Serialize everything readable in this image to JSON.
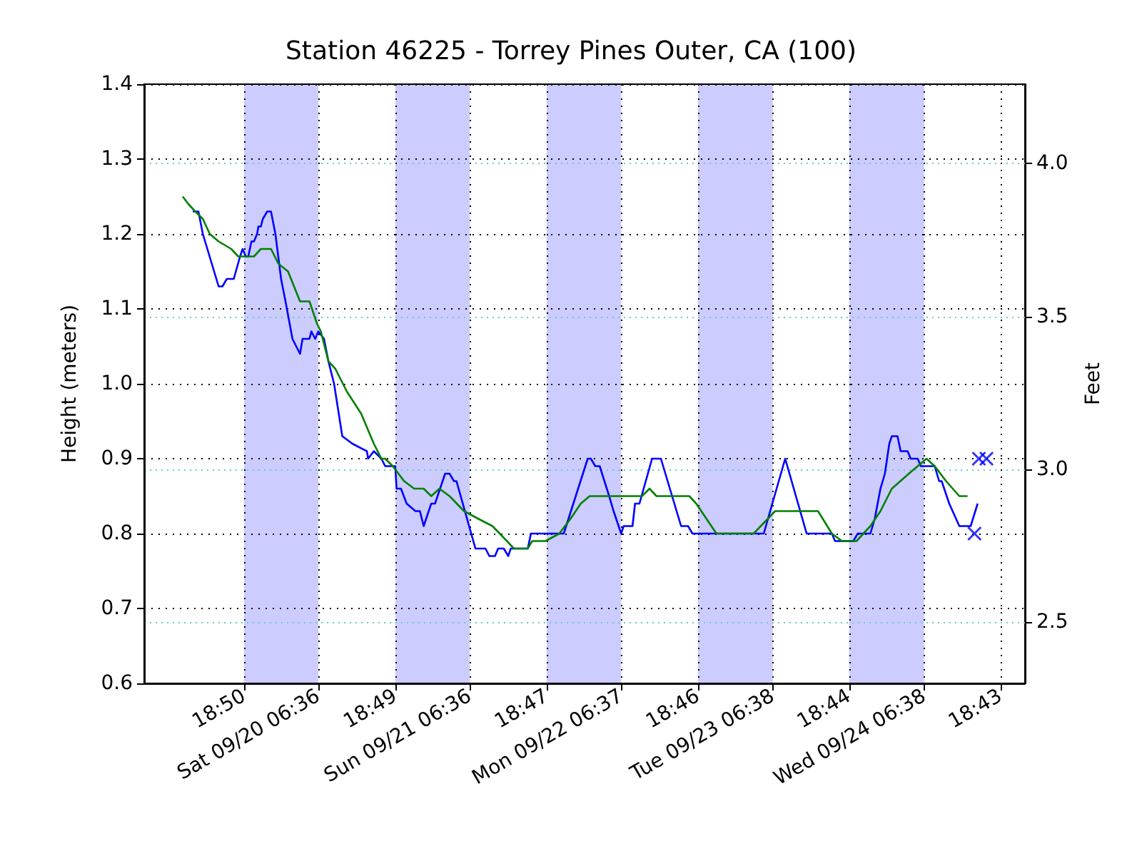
{
  "chart_data": {
    "type": "line",
    "title": "Station 46225 - Torrey Pines Outer, CA (100)",
    "ylabel": "Height (meters)",
    "y2label": "Feet",
    "xlim": [
      "--09-19T03:00",
      "--09-24T22:36"
    ],
    "xticks": [
      {
        "value": "--09-19T18:50",
        "label": "18:50"
      },
      {
        "value": "--09-20T06:36",
        "label": "Sat 09/20 06:36"
      },
      {
        "value": "--09-20T18:49",
        "label": "18:49"
      },
      {
        "value": "--09-21T06:36",
        "label": "Sun 09/21 06:36"
      },
      {
        "value": "--09-21T18:47",
        "label": "18:47"
      },
      {
        "value": "--09-22T06:37",
        "label": "Mon 09/22 06:37"
      },
      {
        "value": "--09-22T18:46",
        "label": "18:46"
      },
      {
        "value": "--09-23T06:38",
        "label": "Tue 09/23 06:38"
      },
      {
        "value": "--09-23T18:44",
        "label": "18:44"
      },
      {
        "value": "--09-24T06:38",
        "label": "Wed 09/24 06:38"
      },
      {
        "value": "--09-24T18:43",
        "label": "18:43"
      }
    ],
    "ylim": [
      0.6,
      1.4
    ],
    "yticks": [
      0.6,
      0.7,
      0.8,
      0.9,
      {
        "value": 1,
        "label": "1.0"
      },
      1.1,
      1.2,
      1.3,
      1.4
    ],
    "y2lim": [
      2.3,
      4.26
    ],
    "y2ticks": [
      2.5,
      {
        "value": 3,
        "label": "3.0"
      },
      3.5,
      {
        "value": 4,
        "label": "4.0"
      }
    ],
    "grid": true,
    "bands": [
      {
        "axis": "x",
        "from": "--09-19T18:50",
        "to": "--09-20T06:36",
        "color": "#ccccff"
      },
      {
        "axis": "x",
        "from": "--09-20T18:49",
        "to": "--09-21T06:36",
        "color": "#ccccff"
      },
      {
        "axis": "x",
        "from": "--09-21T18:47",
        "to": "--09-22T06:37",
        "color": "#ccccff"
      },
      {
        "axis": "x",
        "from": "--09-22T18:46",
        "to": "--09-23T06:38",
        "color": "#ccccff"
      },
      {
        "axis": "x",
        "from": "--09-23T18:44",
        "to": "--09-24T06:38",
        "color": "#ccccff"
      }
    ],
    "series": [
      {
        "color": "#0000ff",
        "x": [
          "--09-19T10:42",
          "--09-19T11:36",
          "--09-19T12:18",
          "--09-19T14:48",
          "--09-19T15:24",
          "--09-19T16:06",
          "--09-19T17:12",
          "--09-19T18:12",
          "--09-19T18:36",
          "--09-19T19:06",
          "--09-19T19:30",
          "--09-19T20:00",
          "--09-19T20:24",
          "--09-19T20:54",
          "--09-19T21:06",
          "--09-19T21:30",
          "--09-19T21:48",
          "--09-19T22:30",
          "--09-19T23:06",
          "--09-19T23:48",
          "--09-20T00:42",
          "--09-20T01:24",
          "--09-20T02:30",
          "--09-20T03:42",
          "--09-20T04:06",
          "--09-20T05:12",
          "--09-20T05:30",
          "--09-20T06:06",
          "--09-20T06:36",
          "--09-20T07:30",
          "--09-20T08:12",
          "--09-20T09:06",
          "--09-20T10:24",
          "--09-20T12:00",
          "--09-20T14:18",
          "--09-20T14:30",
          "--09-20T15:24",
          "--09-20T16:36",
          "--09-20T17:12",
          "--09-20T18:24",
          "--09-20T18:48",
          "--09-20T19:00",
          "--09-20T19:42",
          "--09-20T20:36",
          "--09-20T22:00",
          "--09-20T22:42",
          "--09-20T23:18",
          "--09-21T00:30",
          "--09-21T01:06",
          "--09-21T02:42",
          "--09-21T03:24",
          "--09-21T04:06",
          "--09-21T04:30",
          "--09-21T07:30",
          "--09-21T09:06",
          "--09-21T09:42",
          "--09-21T10:36",
          "--09-21T11:06",
          "--09-21T12:00",
          "--09-21T12:42",
          "--09-21T13:06",
          "--09-21T15:48",
          "--09-21T16:18",
          "--09-21T20:48",
          "--09-21T21:30",
          "--09-22T01:18",
          "--09-22T01:48",
          "--09-22T02:30",
          "--09-22T03:12",
          "--09-22T04:42",
          "--09-22T05:24",
          "--09-22T06:36",
          "--09-22T07:00",
          "--09-22T07:42",
          "--09-22T08:24",
          "--09-22T08:48",
          "--09-22T09:30",
          "--09-22T11:30",
          "--09-22T12:54",
          "--09-22T16:06",
          "--09-22T17:12",
          "--09-22T17:54",
          "--09-23T05:12",
          "--09-23T08:36",
          "--09-23T12:00",
          "--09-23T16:00",
          "--09-23T16:30",
          "--09-23T19:24",
          "--09-23T20:06",
          "--09-23T22:06",
          "--09-23T22:48",
          "--09-23T23:42",
          "--09-24T00:24",
          "--09-24T01:06",
          "--09-24T01:30",
          "--09-24T02:24",
          "--09-24T02:54",
          "--09-24T04:00",
          "--09-24T04:30",
          "--09-24T05:36",
          "--09-24T06:06",
          "--09-24T08:18",
          "--09-24T09:00",
          "--09-24T09:24",
          "--09-24T10:36",
          "--09-24T12:12",
          "--09-24T14:00",
          "--09-24T15:06"
        ],
        "values": [
          1.23,
          1.23,
          1.2,
          1.13,
          1.13,
          1.14,
          1.14,
          1.17,
          1.18,
          1.17,
          1.17,
          1.19,
          1.19,
          1.2,
          1.21,
          1.21,
          1.22,
          1.23,
          1.23,
          1.2,
          1.14,
          1.11,
          1.06,
          1.04,
          1.06,
          1.06,
          1.07,
          1.06,
          1.07,
          1.06,
          1.03,
          1.0,
          0.93,
          0.92,
          0.91,
          0.9,
          0.91,
          0.9,
          0.89,
          0.89,
          0.89,
          0.86,
          0.86,
          0.84,
          0.83,
          0.83,
          0.81,
          0.84,
          0.84,
          0.88,
          0.88,
          0.87,
          0.87,
          0.78,
          0.78,
          0.77,
          0.77,
          0.78,
          0.78,
          0.77,
          0.78,
          0.78,
          0.8,
          0.8,
          0.8,
          0.9,
          0.9,
          0.89,
          0.89,
          0.85,
          0.83,
          0.8,
          0.81,
          0.81,
          0.81,
          0.84,
          0.84,
          0.9,
          0.9,
          0.81,
          0.81,
          0.8,
          0.8,
          0.9,
          0.8,
          0.8,
          0.79,
          0.79,
          0.8,
          0.8,
          0.82,
          0.86,
          0.88,
          0.92,
          0.93,
          0.93,
          0.91,
          0.91,
          0.9,
          0.9,
          0.89,
          0.89,
          0.87,
          0.87,
          0.84,
          0.81,
          0.81,
          0.84
        ]
      },
      {
        "color": "#008000",
        "x": [
          "--09-19T09:06",
          "--09-19T10:00",
          "--09-19T11:06",
          "--09-19T12:18",
          "--09-19T13:24",
          "--09-19T14:48",
          "--09-19T16:48",
          "--09-19T17:54",
          "--09-19T19:06",
          "--09-19T20:24",
          "--09-19T21:30",
          "--09-19T23:06",
          "--09-20T00:18",
          "--09-20T01:48",
          "--09-20T03:42",
          "--09-20T05:12",
          "--09-20T06:24",
          "--09-20T07:00",
          "--09-20T08:12",
          "--09-20T09:18",
          "--09-20T11:06",
          "--09-20T13:24",
          "--09-20T15:24",
          "--09-20T16:36",
          "--09-20T17:12",
          "--09-20T18:24",
          "--09-20T20:12",
          "--09-20T21:48",
          "--09-20T23:18",
          "--09-21T00:30",
          "--09-21T01:48",
          "--09-21T03:24",
          "--09-21T05:42",
          "--09-21T07:54",
          "--09-21T10:12",
          "--09-21T12:30",
          "--09-21T13:36",
          "--09-21T15:48",
          "--09-21T16:30",
          "--09-21T18:36",
          "--09-21T20:48",
          "--09-21T22:36",
          "--09-22T00:12",
          "--09-22T01:36",
          "--09-22T03:48",
          "--09-22T05:24",
          "--09-22T07:00",
          "--09-22T08:24",
          "--09-22T09:54",
          "--09-22T11:06",
          "--09-22T12:12",
          "--09-22T13:18",
          "--09-22T15:06",
          "--09-22T16:18",
          "--09-22T17:24",
          "--09-22T18:30",
          "--09-22T20:06",
          "--09-22T21:42",
          "--09-22T22:48",
          "--09-23T00:12",
          "--09-23T03:36",
          "--09-23T07:00",
          "--09-23T13:48",
          "--09-23T16:00",
          "--09-23T17:36",
          "--09-23T19:54",
          "--09-23T22:06",
          "--09-23T23:42",
          "--09-24T01:30",
          "--09-24T04:12",
          "--09-24T05:36",
          "--09-24T07:00",
          "--09-24T08:18",
          "--09-24T10:06",
          "--09-24T12:12",
          "--09-24T13:30"
        ],
        "values": [
          1.25,
          1.24,
          1.23,
          1.22,
          1.2,
          1.19,
          1.18,
          1.17,
          1.17,
          1.17,
          1.18,
          1.18,
          1.16,
          1.15,
          1.11,
          1.11,
          1.08,
          1.07,
          1.03,
          1.02,
          0.99,
          0.96,
          0.92,
          0.9,
          0.9,
          0.89,
          0.87,
          0.86,
          0.86,
          0.85,
          0.86,
          0.85,
          0.83,
          0.82,
          0.81,
          0.79,
          0.78,
          0.78,
          0.79,
          0.79,
          0.8,
          0.82,
          0.84,
          0.85,
          0.85,
          0.85,
          0.85,
          0.85,
          0.85,
          0.86,
          0.85,
          0.85,
          0.85,
          0.85,
          0.85,
          0.84,
          0.82,
          0.8,
          0.8,
          0.8,
          0.8,
          0.83,
          0.83,
          0.8,
          0.79,
          0.79,
          0.81,
          0.83,
          0.86,
          0.88,
          0.89,
          0.9,
          0.89,
          0.87,
          0.85,
          0.85
        ]
      },
      {
        "type": "scatter",
        "color": "#0000ff",
        "marker": "cross",
        "x": [
          "--09-24T14:36",
          "--09-24T15:18",
          "--09-24T16:30"
        ],
        "values": [
          0.8,
          0.9,
          0.9
        ]
      }
    ]
  }
}
